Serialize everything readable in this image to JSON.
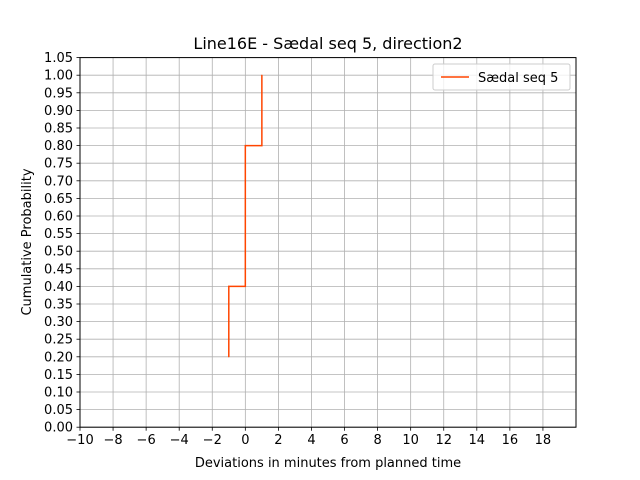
{
  "chart_data": {
    "type": "line",
    "title": "Line16E - Sædal seq 5, direction2",
    "xlabel": "Deviations in minutes from planned time",
    "ylabel": "Cumulative Probability",
    "xlim": [
      -10,
      20
    ],
    "ylim": [
      0,
      1.05
    ],
    "x_ticks": [
      -10,
      -8,
      -6,
      -4,
      -2,
      0,
      2,
      4,
      6,
      8,
      10,
      12,
      14,
      16,
      18
    ],
    "x_tick_labels": [
      "−10",
      "−8",
      "−6",
      "−4",
      "−2",
      "0",
      "2",
      "4",
      "6",
      "8",
      "10",
      "12",
      "14",
      "16",
      "18"
    ],
    "y_ticks": [
      0.0,
      0.05,
      0.1,
      0.15,
      0.2,
      0.25,
      0.3,
      0.35,
      0.4,
      0.45,
      0.5,
      0.55,
      0.6,
      0.65,
      0.7,
      0.75,
      0.8,
      0.85,
      0.9,
      0.95,
      1.0,
      1.05
    ],
    "y_tick_labels": [
      "0.00",
      "0.05",
      "0.10",
      "0.15",
      "0.20",
      "0.25",
      "0.30",
      "0.35",
      "0.40",
      "0.45",
      "0.50",
      "0.55",
      "0.60",
      "0.65",
      "0.70",
      "0.75",
      "0.80",
      "0.85",
      "0.90",
      "0.95",
      "1.00",
      "1.05"
    ],
    "grid": true,
    "legend_position": "top-right",
    "series": [
      {
        "name": "Sædal seq 5",
        "color": "#ff4500",
        "step": "post",
        "points": [
          {
            "x": -1,
            "y": 0.2
          },
          {
            "x": -1,
            "y": 0.4
          },
          {
            "x": 0,
            "y": 0.4
          },
          {
            "x": 0,
            "y": 0.8
          },
          {
            "x": 1,
            "y": 0.8
          },
          {
            "x": 1,
            "y": 1.0
          }
        ]
      }
    ]
  }
}
